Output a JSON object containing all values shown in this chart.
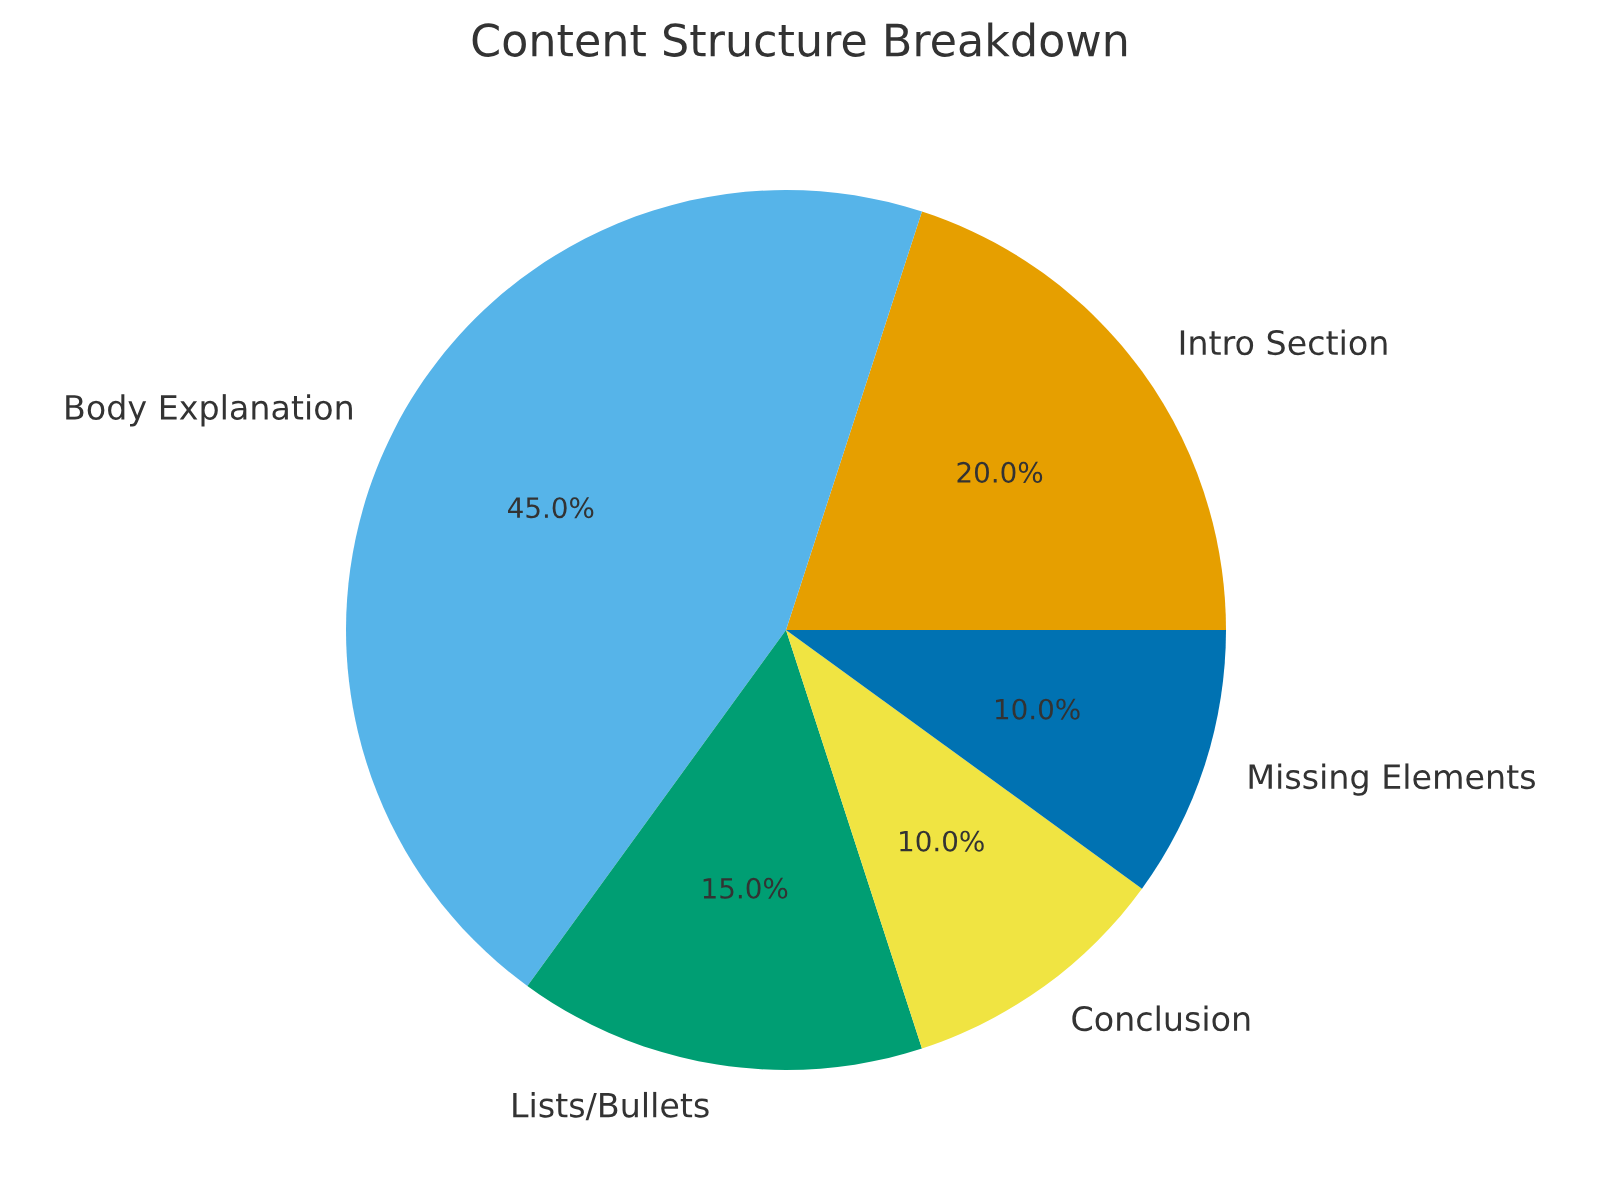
{
  "chart_data": {
    "type": "pie",
    "title": "Content Structure Breakdown",
    "categories": [
      "Intro Section",
      "Body Explanation",
      "Lists/Bullets",
      "Conclusion",
      "Missing Elements"
    ],
    "values": [
      20,
      45,
      15,
      10,
      10
    ],
    "colors": [
      "#e69f00",
      "#56b4e9",
      "#009e73",
      "#f0e442",
      "#0072b2"
    ],
    "value_labels": [
      "20.0%",
      "45.0%",
      "15.0%",
      "10.0%",
      "10.0%"
    ]
  }
}
